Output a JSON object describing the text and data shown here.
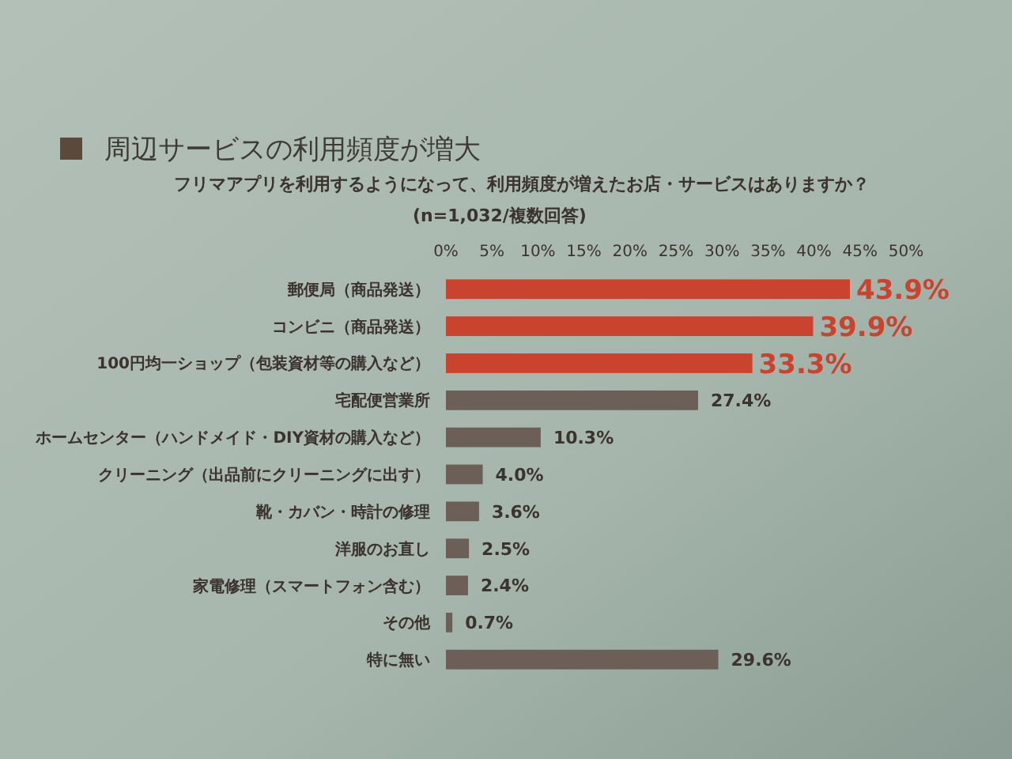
{
  "chart_data": {
    "type": "bar",
    "orientation": "horizontal",
    "title": "周辺サービスの利用頻度が増大",
    "subtitle": "フリマアプリを利用するようになって、利用頻度が増えたお店・サービスはありますか？",
    "annotations": [
      "(n=1,032/複数回答)"
    ],
    "categories": [
      "郵便局（商品発送）",
      "コンビニ（商品発送）",
      "100円均一ショップ（包装資材等の購入など）",
      "宅配便営業所",
      "ホームセンター（ハンドメイド・DIY資材の購入など）",
      "クリーニング（出品前にクリーニングに出す）",
      "靴・カバン・時計の修理",
      "洋服のお直し",
      "家電修理（スマートフォン含む）",
      "その他",
      "特に無い"
    ],
    "values": [
      43.9,
      39.9,
      33.3,
      27.4,
      10.3,
      4.0,
      3.6,
      2.5,
      2.4,
      0.7,
      29.6
    ],
    "colors": [
      "#c9432f",
      "#c9432f",
      "#c9432f",
      "#6b5f57",
      "#6b5f57",
      "#6b5f57",
      "#6b5f57",
      "#6b5f57",
      "#6b5f57",
      "#6b5f57",
      "#6b5f57"
    ],
    "value_labels": [
      "43.9%",
      "39.9%",
      "33.3%",
      "27.4%",
      "10.3%",
      "4.0%",
      "3.6%",
      "2.5%",
      "2.4%",
      "0.7%",
      "29.6%"
    ],
    "xlim": [
      0,
      50
    ],
    "xticks": [
      {
        "value": 0,
        "label": "0%"
      },
      {
        "value": 5,
        "label": "5%"
      },
      {
        "value": 10,
        "label": "10%"
      },
      {
        "value": 15,
        "label": "15%"
      },
      {
        "value": 20,
        "label": "20%"
      },
      {
        "value": 25,
        "label": "25%"
      },
      {
        "value": 30,
        "label": "30%"
      },
      {
        "value": 35,
        "label": "35%"
      },
      {
        "value": 40,
        "label": "40%"
      },
      {
        "value": 45,
        "label": "45%"
      },
      {
        "value": 50,
        "label": "50%"
      }
    ]
  }
}
